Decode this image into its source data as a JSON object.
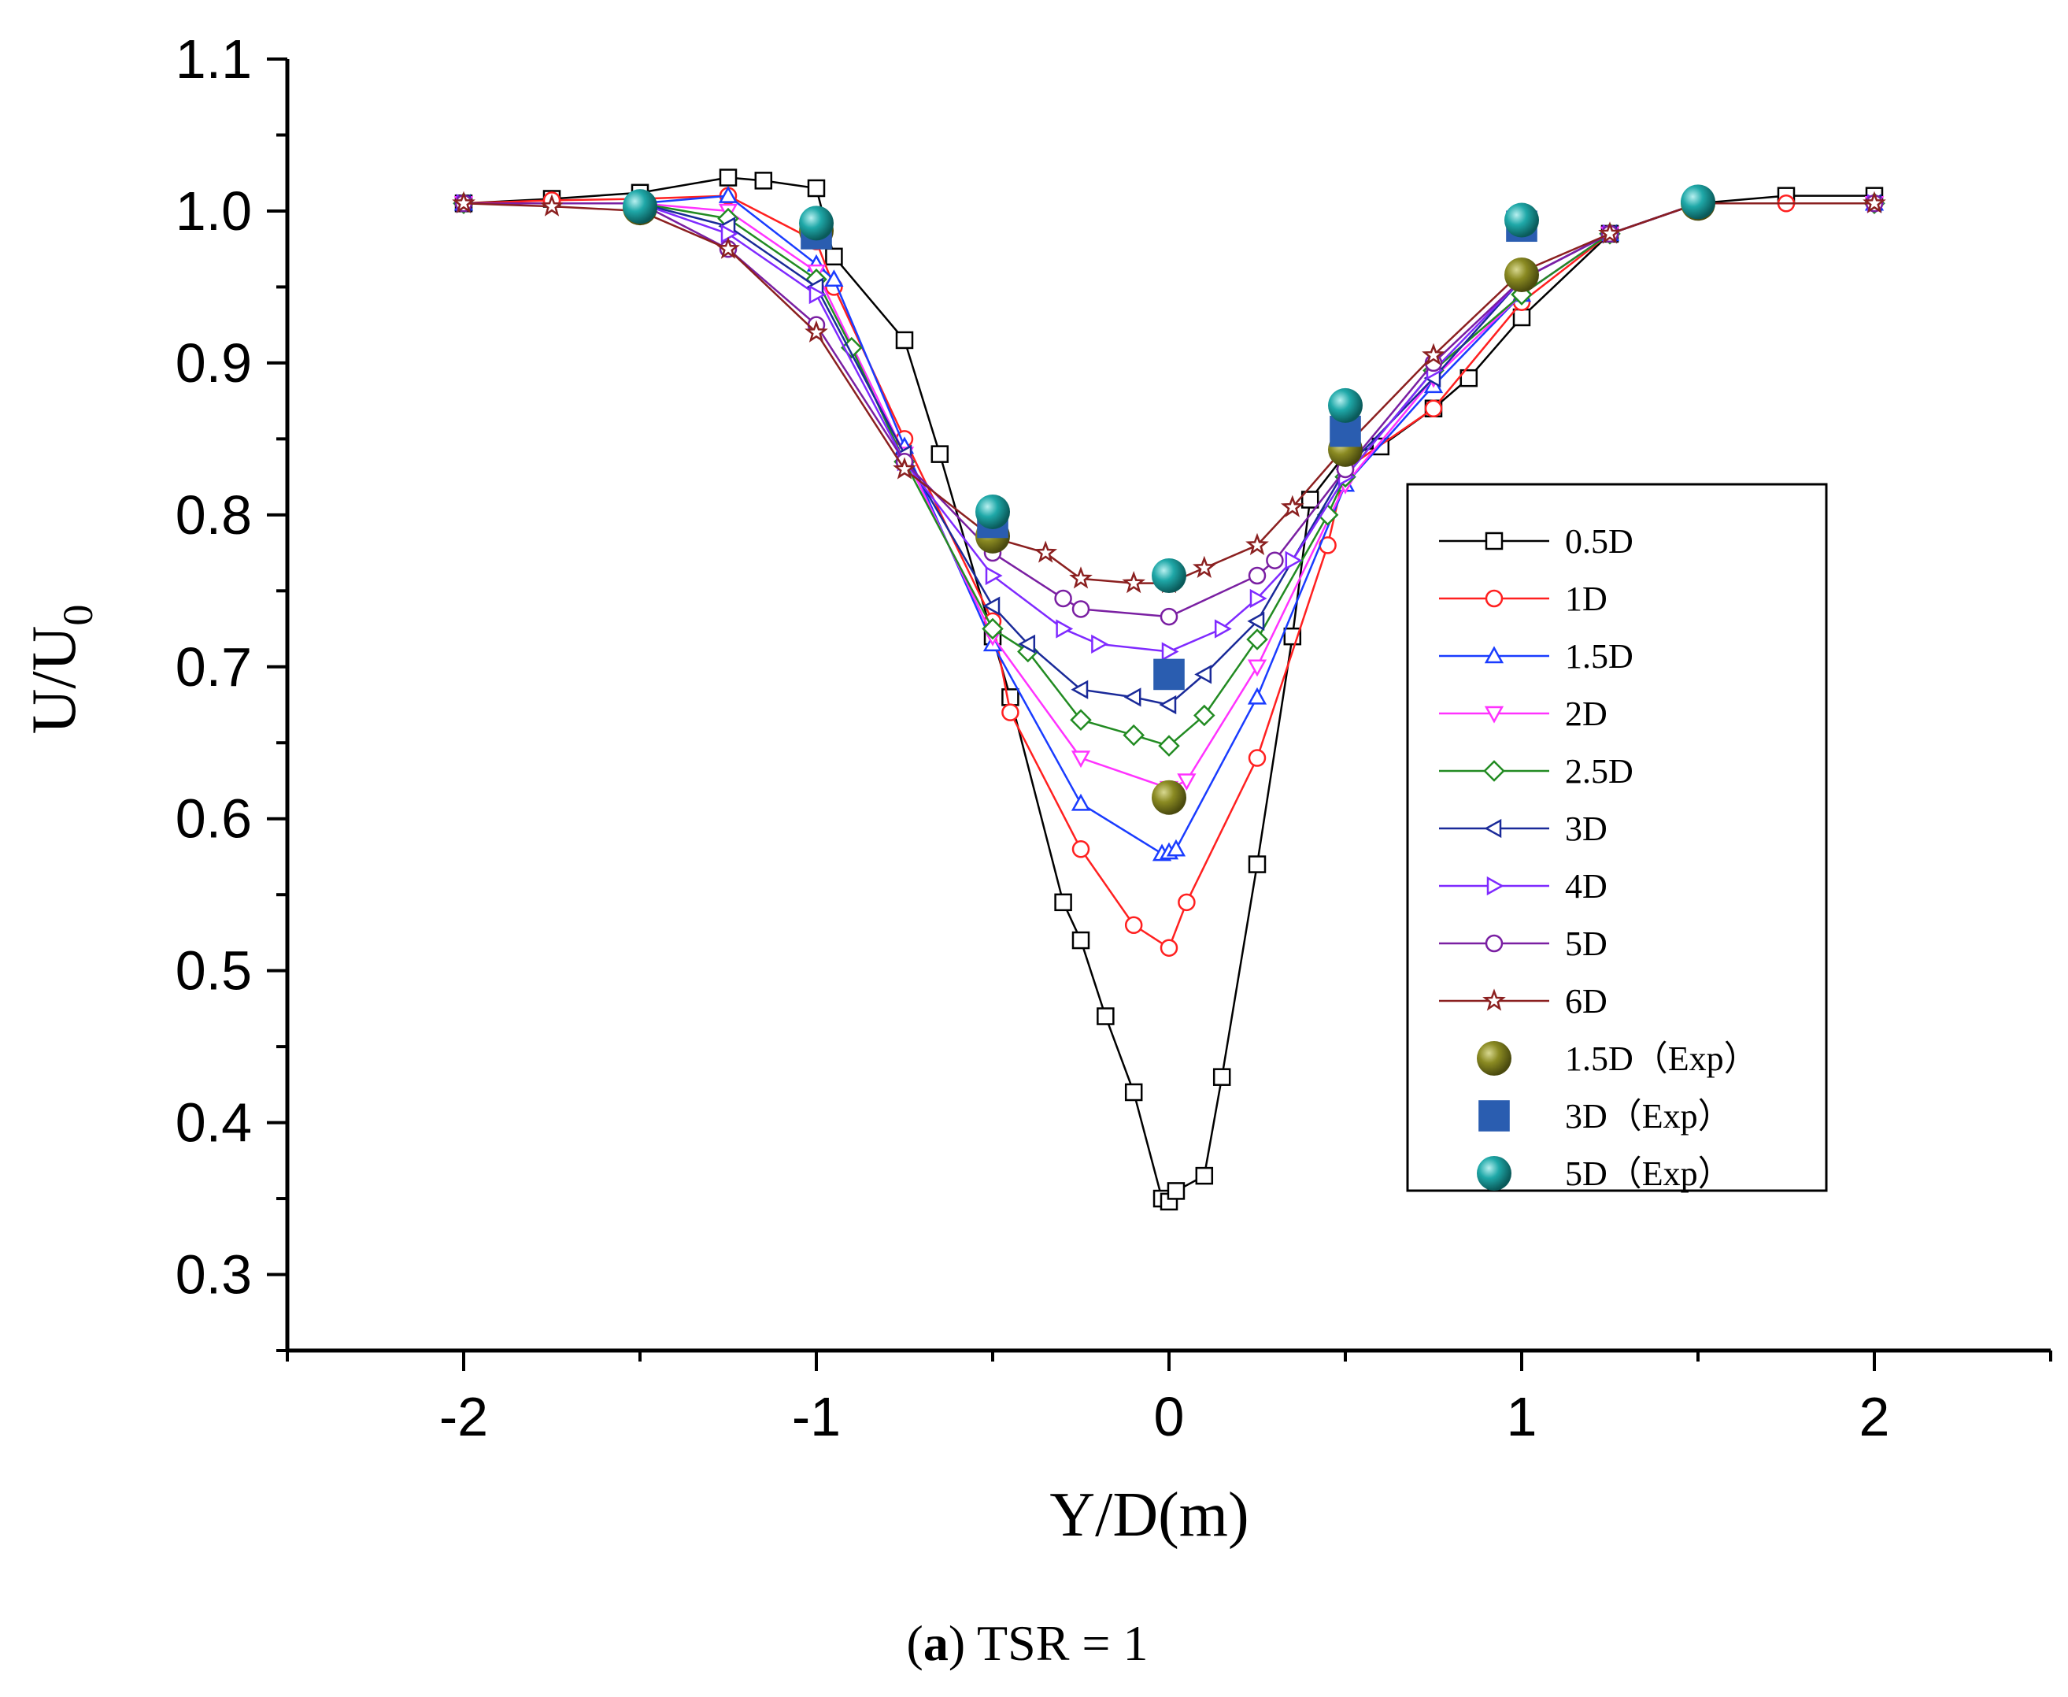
{
  "chart_data": {
    "type": "line",
    "xlabel": "Y/D(m)",
    "ylabel_main": "U/U",
    "ylabel_sub": "0",
    "xlim": [
      -2.5,
      2.5
    ],
    "ylim": [
      0.25,
      1.1
    ],
    "x_ticks": [
      -2,
      -1,
      0,
      1,
      2
    ],
    "x_tick_labels": [
      "-2",
      "-1",
      "0",
      "1",
      "2"
    ],
    "y_ticks": [
      0.3,
      0.4,
      0.5,
      0.6,
      0.7,
      0.8,
      0.9,
      1.0,
      1.1
    ],
    "y_tick_labels": [
      "0.3",
      "0.4",
      "0.5",
      "0.6",
      "0.7",
      "0.8",
      "0.9",
      "1.0",
      "1.1"
    ],
    "caption_letter": "a",
    "caption_rest": " TSR = 1",
    "legend_position": "right-middle",
    "series": [
      {
        "name": "0.5D",
        "color": "#000000",
        "marker": "square",
        "x": [
          -2,
          -1.75,
          -1.5,
          -1.25,
          -1.15,
          -1,
          -0.95,
          -0.75,
          -0.65,
          -0.5,
          -0.45,
          -0.3,
          -0.25,
          -0.18,
          -0.1,
          -0.02,
          0,
          0.02,
          0.1,
          0.15,
          0.25,
          0.35,
          0.4,
          0.5,
          0.6,
          0.75,
          0.85,
          1,
          1.25,
          1.5,
          1.75,
          2
        ],
        "y": [
          1.005,
          1.008,
          1.012,
          1.022,
          1.02,
          1.015,
          0.97,
          0.915,
          0.84,
          0.72,
          0.68,
          0.545,
          0.52,
          0.47,
          0.42,
          0.35,
          0.348,
          0.355,
          0.365,
          0.43,
          0.57,
          0.72,
          0.81,
          0.84,
          0.845,
          0.87,
          0.89,
          0.93,
          0.985,
          1.005,
          1.01,
          1.01
        ]
      },
      {
        "name": "1D",
        "color": "#ff2020",
        "marker": "circle",
        "x": [
          -2,
          -1.75,
          -1.5,
          -1.25,
          -1,
          -0.95,
          -0.75,
          -0.5,
          -0.45,
          -0.25,
          -0.1,
          0,
          0.05,
          0.25,
          0.45,
          0.5,
          0.75,
          1,
          1.25,
          1.5,
          1.75,
          2
        ],
        "y": [
          1.005,
          1.007,
          1.008,
          1.01,
          0.98,
          0.95,
          0.85,
          0.73,
          0.67,
          0.58,
          0.53,
          0.515,
          0.545,
          0.64,
          0.78,
          0.83,
          0.87,
          0.94,
          0.985,
          1.005,
          1.005,
          1.005
        ]
      },
      {
        "name": "1.5D",
        "color": "#1a3cff",
        "marker": "triangle-up",
        "x": [
          -2,
          -1.5,
          -1.25,
          -1,
          -0.95,
          -0.75,
          -0.5,
          -0.25,
          -0.02,
          0,
          0.02,
          0.25,
          0.5,
          0.75,
          1,
          1.25,
          1.5,
          2
        ],
        "y": [
          1.005,
          1.005,
          1.01,
          0.965,
          0.955,
          0.845,
          0.715,
          0.61,
          0.577,
          0.578,
          0.58,
          0.68,
          0.82,
          0.885,
          0.945,
          0.985,
          1.005,
          1.005
        ]
      },
      {
        "name": "2D",
        "color": "#ff33ff",
        "marker": "triangle-down",
        "x": [
          -2,
          -1.5,
          -1.25,
          -1,
          -0.75,
          -0.5,
          -0.25,
          0,
          0.05,
          0.25,
          0.5,
          0.75,
          1,
          1.25,
          1.5,
          2
        ],
        "y": [
          1.005,
          1.005,
          1.0,
          0.96,
          0.84,
          0.72,
          0.64,
          0.62,
          0.625,
          0.7,
          0.82,
          0.89,
          0.945,
          0.985,
          1.005,
          1.005
        ]
      },
      {
        "name": "2.5D",
        "color": "#228b22",
        "marker": "diamond",
        "x": [
          -2,
          -1.5,
          -1.25,
          -1,
          -0.9,
          -0.75,
          -0.5,
          -0.4,
          -0.25,
          -0.1,
          0,
          0.1,
          0.25,
          0.45,
          0.5,
          0.75,
          1,
          1.25,
          1.5,
          2
        ],
        "y": [
          1.005,
          1.005,
          0.995,
          0.955,
          0.91,
          0.835,
          0.725,
          0.71,
          0.665,
          0.655,
          0.648,
          0.668,
          0.718,
          0.8,
          0.825,
          0.895,
          0.945,
          0.985,
          1.005,
          1.005
        ]
      },
      {
        "name": "3D",
        "color": "#1a2a99",
        "marker": "triangle-left",
        "x": [
          -2,
          -1.5,
          -1.25,
          -1,
          -0.75,
          -0.5,
          -0.4,
          -0.25,
          -0.1,
          0,
          0.1,
          0.25,
          0.5,
          0.75,
          1,
          1.25,
          1.5,
          2
        ],
        "y": [
          1.005,
          1.005,
          0.99,
          0.95,
          0.84,
          0.74,
          0.715,
          0.685,
          0.68,
          0.675,
          0.695,
          0.73,
          0.83,
          0.89,
          0.955,
          0.985,
          1.005,
          1.005
        ]
      },
      {
        "name": "4D",
        "color": "#7f2aff",
        "marker": "triangle-right",
        "x": [
          -2,
          -1.5,
          -1.25,
          -1,
          -0.75,
          -0.5,
          -0.3,
          -0.2,
          0,
          0.15,
          0.25,
          0.35,
          0.5,
          0.75,
          1,
          1.25,
          1.5,
          2
        ],
        "y": [
          1.005,
          1.005,
          0.985,
          0.945,
          0.835,
          0.76,
          0.725,
          0.715,
          0.71,
          0.725,
          0.745,
          0.77,
          0.825,
          0.895,
          0.955,
          0.985,
          1.005,
          1.005
        ]
      },
      {
        "name": "5D",
        "color": "#7a1fa2",
        "marker": "circle",
        "x": [
          -2,
          -1.5,
          -1.25,
          -1,
          -0.75,
          -0.5,
          -0.3,
          -0.25,
          0,
          0.25,
          0.3,
          0.5,
          0.75,
          1,
          1.25,
          1.5,
          2
        ],
        "y": [
          1.005,
          1.005,
          0.975,
          0.925,
          0.835,
          0.775,
          0.745,
          0.738,
          0.733,
          0.76,
          0.77,
          0.83,
          0.9,
          0.955,
          0.985,
          1.005,
          1.005
        ]
      },
      {
        "name": "6D",
        "color": "#8b2020",
        "marker": "star",
        "x": [
          -2,
          -1.75,
          -1.5,
          -1.25,
          -1,
          -0.75,
          -0.5,
          -0.35,
          -0.25,
          -0.1,
          0,
          0.1,
          0.25,
          0.35,
          0.5,
          0.75,
          1,
          1.25,
          1.5,
          2
        ],
        "y": [
          1.005,
          1.003,
          1.0,
          0.975,
          0.92,
          0.83,
          0.785,
          0.775,
          0.758,
          0.755,
          0.755,
          0.765,
          0.78,
          0.805,
          0.845,
          0.905,
          0.96,
          0.985,
          1.005,
          1.005
        ]
      }
    ],
    "experiment_series": [
      {
        "name": "1.5D（Exp）",
        "color": "#7a7a1a",
        "marker": "sphere",
        "x": [
          -1.5,
          -1,
          -0.5,
          0,
          0.5,
          1,
          1.5
        ],
        "y": [
          1.002,
          0.987,
          0.786,
          0.614,
          0.843,
          0.958,
          1.005
        ]
      },
      {
        "name": "3D（Exp）",
        "color": "#2a5db0",
        "marker": "filled-square",
        "x": [
          -1,
          -0.5,
          0,
          0.5,
          1
        ],
        "y": [
          0.985,
          0.795,
          0.695,
          0.855,
          0.99
        ]
      },
      {
        "name": "5D（Exp）",
        "color": "#1a9a9a",
        "marker": "sphere",
        "x": [
          -1.5,
          -1,
          -0.5,
          0,
          0.5,
          1,
          1.5
        ],
        "y": [
          1.003,
          0.992,
          0.802,
          0.76,
          0.872,
          0.994,
          1.006
        ]
      }
    ]
  }
}
